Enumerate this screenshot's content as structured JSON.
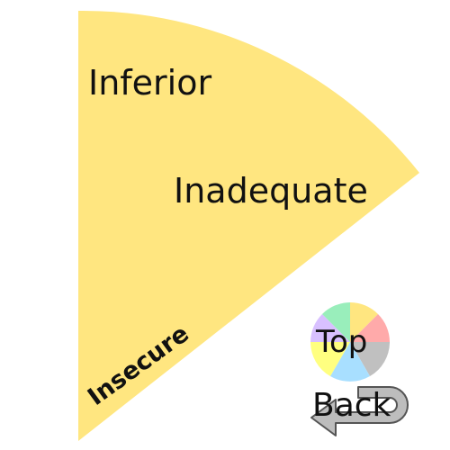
{
  "wedge": {
    "fill_color": "#ffe680",
    "items": [
      {
        "label": "Inferior"
      },
      {
        "label": "Inadequate"
      },
      {
        "label": "Insecure"
      }
    ]
  },
  "nav": {
    "top_label": "Top",
    "back_label": "Back",
    "top_icon": "mini-pie-icon",
    "back_icon": "u-turn-arrow-icon"
  },
  "mini_pie_colors": [
    "#ffe680",
    "#ffaaaa",
    "#c0c0c0",
    "#a8dfff",
    "#ffff80",
    "#d8c0ff",
    "#99eebb"
  ]
}
